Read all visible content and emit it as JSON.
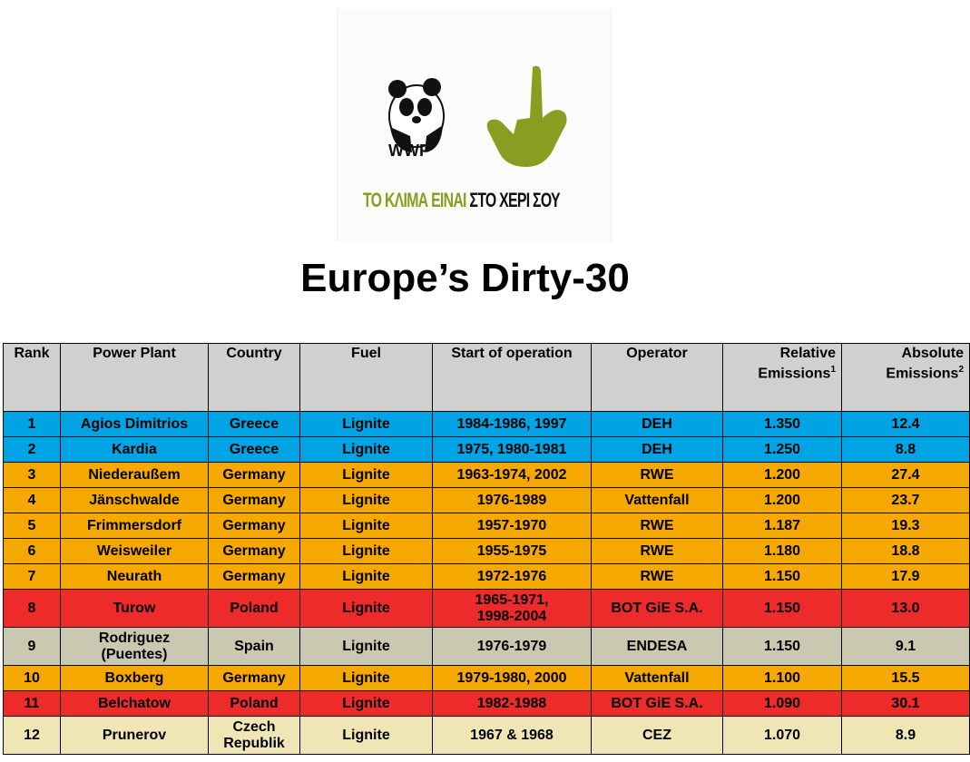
{
  "logo": {
    "wwf": "WWF",
    "slogan_part1": "ΤΟ ΚΛΙΜΑ ΕΙΝΑΙ",
    "slogan_part2": "ΣΤΟ ΧΕΡΙ ΣΟΥ",
    "slogan_color": "#8a9d20"
  },
  "title": "Europe’s Dirty-30",
  "table": {
    "headers": {
      "rank": "Rank",
      "plant": "Power Plant",
      "country": "Country",
      "fuel": "Fuel",
      "start": "Start of operation",
      "operator": "Operator",
      "relative": "Relative",
      "relative2": "Emissions",
      "relative_sup": "1",
      "absolute": "Absolute",
      "absolute2": "Emissions",
      "absolute_sup": "2"
    },
    "rows": [
      {
        "rank": "1",
        "plant": "Agios Dimitrios",
        "country": "Greece",
        "fuel": "Lignite",
        "start": "1984-1986, 1997",
        "operator": "DEH",
        "relative": "1.350",
        "absolute": "12.4"
      },
      {
        "rank": "2",
        "plant": "Kardia",
        "country": "Greece",
        "fuel": "Lignite",
        "start": "1975, 1980-1981",
        "operator": "DEH",
        "relative": "1.250",
        "absolute": "8.8"
      },
      {
        "rank": "3",
        "plant": "Niederaußem",
        "country": "Germany",
        "fuel": "Lignite",
        "start": "1963-1974, 2002",
        "operator": "RWE",
        "relative": "1.200",
        "absolute": "27.4"
      },
      {
        "rank": "4",
        "plant": "Jänschwalde",
        "country": "Germany",
        "fuel": "Lignite",
        "start": "1976-1989",
        "operator": "Vattenfall",
        "relative": "1.200",
        "absolute": "23.7"
      },
      {
        "rank": "5",
        "plant": "Frimmersdorf",
        "country": "Germany",
        "fuel": "Lignite",
        "start": "1957-1970",
        "operator": "RWE",
        "relative": "1.187",
        "absolute": "19.3"
      },
      {
        "rank": "6",
        "plant": "Weisweiler",
        "country": "Germany",
        "fuel": "Lignite",
        "start": "1955-1975",
        "operator": "RWE",
        "relative": "1.180",
        "absolute": "18.8"
      },
      {
        "rank": "7",
        "plant": "Neurath",
        "country": "Germany",
        "fuel": "Lignite",
        "start": "1972-1976",
        "operator": "RWE",
        "relative": "1.150",
        "absolute": "17.9"
      },
      {
        "rank": "8",
        "plant": "Turow",
        "country": "Poland",
        "fuel": "Lignite",
        "start_a": "1965-1971,",
        "start_b": "1998-2004",
        "operator": "BOT GiE S.A.",
        "relative": "1.150",
        "absolute": "13.0"
      },
      {
        "rank": "9",
        "plant_a": "Rodriguez",
        "plant_b": "(Puentes)",
        "country": "Spain",
        "fuel": "Lignite",
        "start": "1976-1979",
        "operator": "ENDESA",
        "relative": "1.150",
        "absolute": "9.1"
      },
      {
        "rank": "10",
        "plant": "Boxberg",
        "country": "Germany",
        "fuel": "Lignite",
        "start": "1979-1980, 2000",
        "operator": "Vattenfall",
        "relative": "1.100",
        "absolute": "15.5"
      },
      {
        "rank": "11",
        "plant": "Belchatow",
        "country": "Poland",
        "fuel": "Lignite",
        "start": "1982-1988",
        "operator": "BOT GiE S.A.",
        "relative": "1.090",
        "absolute": "30.1"
      },
      {
        "rank": "12",
        "plant": "Prunerov",
        "country_a": "Czech",
        "country_b": "Republik",
        "fuel": "Lignite",
        "start": "1967 & 1968",
        "operator": "CEZ",
        "relative": "1.070",
        "absolute": "8.9"
      }
    ]
  },
  "colors": {
    "greece": "#00a4e4",
    "germany": "#f5a800",
    "poland": "#ee2b2b",
    "spain": "#c8c9b0",
    "czech": "#f0e6b5",
    "header": "#d0d0d0"
  }
}
